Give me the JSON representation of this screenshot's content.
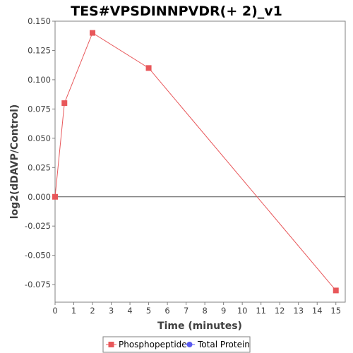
{
  "chart_data": {
    "type": "line",
    "title": "TES#VPSDINNPVDR(+ 2)_v1",
    "xlabel": "Time (minutes)",
    "ylabel": "log2(dDAVP/Control)",
    "xlim": [
      0,
      15.5
    ],
    "ylim": [
      -0.09,
      0.15
    ],
    "x_ticks": [
      "0",
      "1",
      "2",
      "3",
      "4",
      "5",
      "6",
      "7",
      "8",
      "9",
      "10",
      "11",
      "12",
      "13",
      "14",
      "15"
    ],
    "y_ticks": [
      "0.150",
      "0.125",
      "0.100",
      "0.075",
      "0.050",
      "0.025",
      "0.000",
      "-0.025",
      "-0.050",
      "-0.075"
    ],
    "y_tick_values": [
      0.15,
      0.125,
      0.1,
      0.075,
      0.05,
      0.025,
      0.0,
      -0.025,
      -0.05,
      -0.075
    ],
    "zero_line": true,
    "grid": false,
    "legend_position": "bottom",
    "series": [
      {
        "name": "Phosphopeptide",
        "color": "#e8575a",
        "marker": "square",
        "x": [
          0,
          0.5,
          2,
          5,
          15
        ],
        "y": [
          0.0,
          0.08,
          0.14,
          0.11,
          -0.08
        ]
      },
      {
        "name": "Total Protein",
        "color": "#5b5bf0",
        "marker": "circle",
        "x": [],
        "y": []
      }
    ]
  }
}
